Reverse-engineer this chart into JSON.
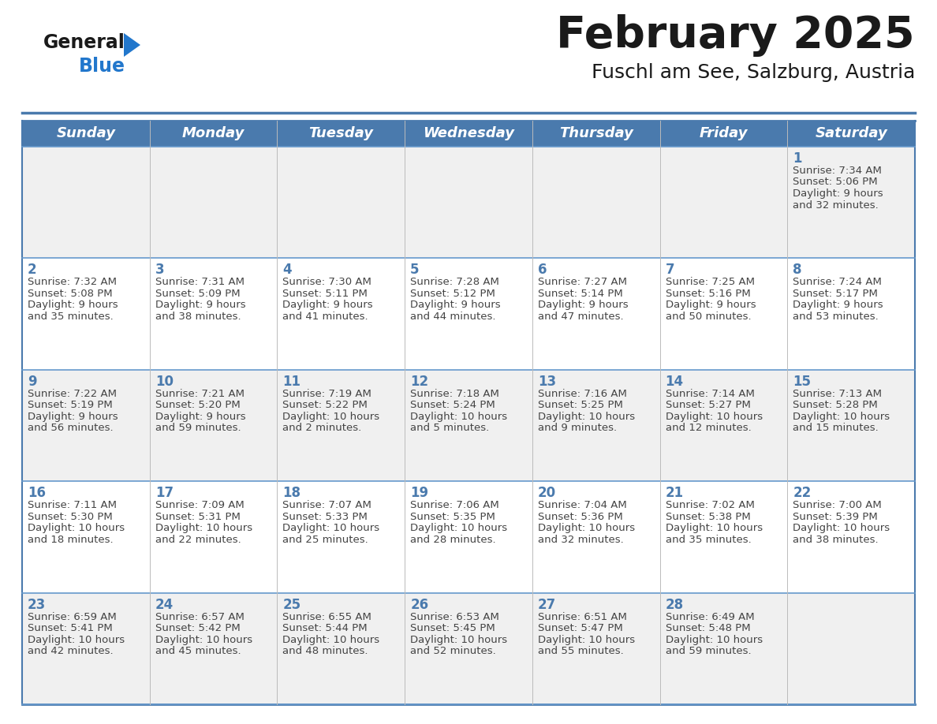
{
  "title": "February 2025",
  "subtitle": "Fuschl am See, Salzburg, Austria",
  "days_of_week": [
    "Sunday",
    "Monday",
    "Tuesday",
    "Wednesday",
    "Thursday",
    "Friday",
    "Saturday"
  ],
  "header_bg": "#4a7aad",
  "header_text": "#ffffff",
  "row_odd_bg": "#f0f0f0",
  "row_even_bg": "#ffffff",
  "border_color": "#4a7aad",
  "row_border_color": "#6699cc",
  "day_num_color": "#4a7aad",
  "text_color": "#444444",
  "title_color": "#1a1a1a",
  "subtitle_color": "#1a1a1a",
  "logo_general_color": "#1a1a1a",
  "logo_blue_color": "#2277cc",
  "logo_triangle_color": "#2277cc",
  "calendar_data": [
    {
      "day": 1,
      "col": 6,
      "row": 0,
      "sunrise": "7:34 AM",
      "sunset": "5:06 PM",
      "daylight": "9 hours and 32 minutes."
    },
    {
      "day": 2,
      "col": 0,
      "row": 1,
      "sunrise": "7:32 AM",
      "sunset": "5:08 PM",
      "daylight": "9 hours and 35 minutes."
    },
    {
      "day": 3,
      "col": 1,
      "row": 1,
      "sunrise": "7:31 AM",
      "sunset": "5:09 PM",
      "daylight": "9 hours and 38 minutes."
    },
    {
      "day": 4,
      "col": 2,
      "row": 1,
      "sunrise": "7:30 AM",
      "sunset": "5:11 PM",
      "daylight": "9 hours and 41 minutes."
    },
    {
      "day": 5,
      "col": 3,
      "row": 1,
      "sunrise": "7:28 AM",
      "sunset": "5:12 PM",
      "daylight": "9 hours and 44 minutes."
    },
    {
      "day": 6,
      "col": 4,
      "row": 1,
      "sunrise": "7:27 AM",
      "sunset": "5:14 PM",
      "daylight": "9 hours and 47 minutes."
    },
    {
      "day": 7,
      "col": 5,
      "row": 1,
      "sunrise": "7:25 AM",
      "sunset": "5:16 PM",
      "daylight": "9 hours and 50 minutes."
    },
    {
      "day": 8,
      "col": 6,
      "row": 1,
      "sunrise": "7:24 AM",
      "sunset": "5:17 PM",
      "daylight": "9 hours and 53 minutes."
    },
    {
      "day": 9,
      "col": 0,
      "row": 2,
      "sunrise": "7:22 AM",
      "sunset": "5:19 PM",
      "daylight": "9 hours and 56 minutes."
    },
    {
      "day": 10,
      "col": 1,
      "row": 2,
      "sunrise": "7:21 AM",
      "sunset": "5:20 PM",
      "daylight": "9 hours and 59 minutes."
    },
    {
      "day": 11,
      "col": 2,
      "row": 2,
      "sunrise": "7:19 AM",
      "sunset": "5:22 PM",
      "daylight": "10 hours and 2 minutes."
    },
    {
      "day": 12,
      "col": 3,
      "row": 2,
      "sunrise": "7:18 AM",
      "sunset": "5:24 PM",
      "daylight": "10 hours and 5 minutes."
    },
    {
      "day": 13,
      "col": 4,
      "row": 2,
      "sunrise": "7:16 AM",
      "sunset": "5:25 PM",
      "daylight": "10 hours and 9 minutes."
    },
    {
      "day": 14,
      "col": 5,
      "row": 2,
      "sunrise": "7:14 AM",
      "sunset": "5:27 PM",
      "daylight": "10 hours and 12 minutes."
    },
    {
      "day": 15,
      "col": 6,
      "row": 2,
      "sunrise": "7:13 AM",
      "sunset": "5:28 PM",
      "daylight": "10 hours and 15 minutes."
    },
    {
      "day": 16,
      "col": 0,
      "row": 3,
      "sunrise": "7:11 AM",
      "sunset": "5:30 PM",
      "daylight": "10 hours and 18 minutes."
    },
    {
      "day": 17,
      "col": 1,
      "row": 3,
      "sunrise": "7:09 AM",
      "sunset": "5:31 PM",
      "daylight": "10 hours and 22 minutes."
    },
    {
      "day": 18,
      "col": 2,
      "row": 3,
      "sunrise": "7:07 AM",
      "sunset": "5:33 PM",
      "daylight": "10 hours and 25 minutes."
    },
    {
      "day": 19,
      "col": 3,
      "row": 3,
      "sunrise": "7:06 AM",
      "sunset": "5:35 PM",
      "daylight": "10 hours and 28 minutes."
    },
    {
      "day": 20,
      "col": 4,
      "row": 3,
      "sunrise": "7:04 AM",
      "sunset": "5:36 PM",
      "daylight": "10 hours and 32 minutes."
    },
    {
      "day": 21,
      "col": 5,
      "row": 3,
      "sunrise": "7:02 AM",
      "sunset": "5:38 PM",
      "daylight": "10 hours and 35 minutes."
    },
    {
      "day": 22,
      "col": 6,
      "row": 3,
      "sunrise": "7:00 AM",
      "sunset": "5:39 PM",
      "daylight": "10 hours and 38 minutes."
    },
    {
      "day": 23,
      "col": 0,
      "row": 4,
      "sunrise": "6:59 AM",
      "sunset": "5:41 PM",
      "daylight": "10 hours and 42 minutes."
    },
    {
      "day": 24,
      "col": 1,
      "row": 4,
      "sunrise": "6:57 AM",
      "sunset": "5:42 PM",
      "daylight": "10 hours and 45 minutes."
    },
    {
      "day": 25,
      "col": 2,
      "row": 4,
      "sunrise": "6:55 AM",
      "sunset": "5:44 PM",
      "daylight": "10 hours and 48 minutes."
    },
    {
      "day": 26,
      "col": 3,
      "row": 4,
      "sunrise": "6:53 AM",
      "sunset": "5:45 PM",
      "daylight": "10 hours and 52 minutes."
    },
    {
      "day": 27,
      "col": 4,
      "row": 4,
      "sunrise": "6:51 AM",
      "sunset": "5:47 PM",
      "daylight": "10 hours and 55 minutes."
    },
    {
      "day": 28,
      "col": 5,
      "row": 4,
      "sunrise": "6:49 AM",
      "sunset": "5:48 PM",
      "daylight": "10 hours and 59 minutes."
    }
  ],
  "num_rows": 5,
  "fig_width": 11.88,
  "fig_height": 9.18,
  "dpi": 100
}
